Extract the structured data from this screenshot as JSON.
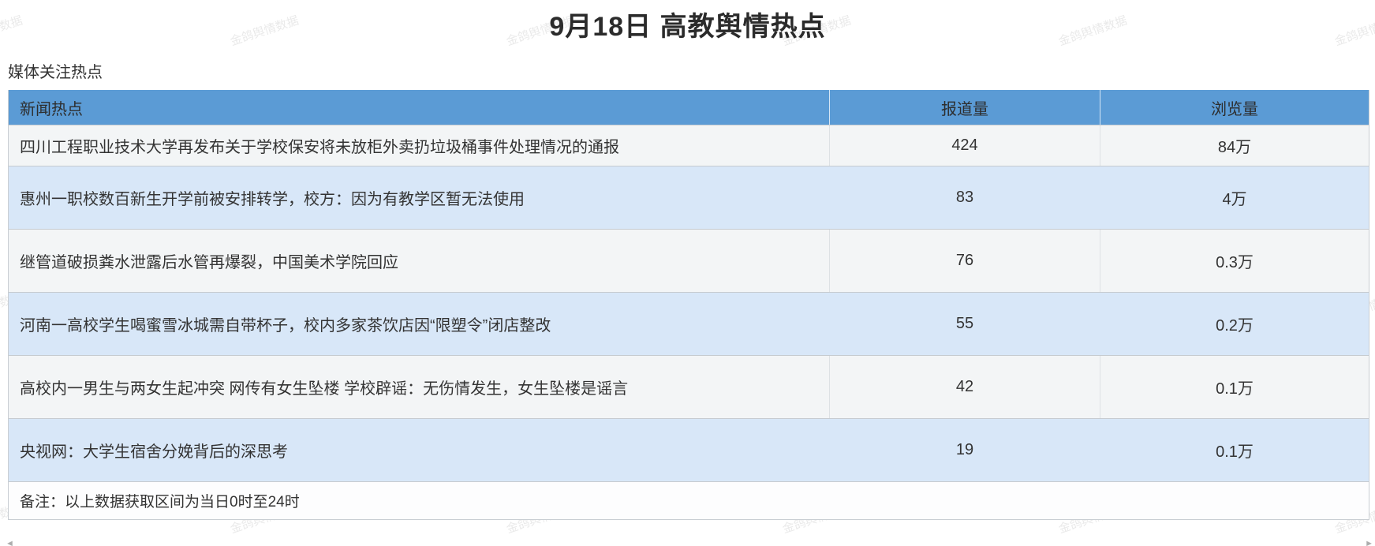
{
  "page": {
    "title": "9月18日 高教舆情热点",
    "section_label": "媒体关注热点",
    "watermark": "金鸽舆情数据"
  },
  "table": {
    "columns": {
      "news": "新闻热点",
      "reports": "报道量",
      "views": "浏览量"
    },
    "rows": [
      {
        "title": "四川工程职业技术大学再发布关于学校保安将未放柜外卖扔垃圾桶事件处理情况的通报",
        "reports": "424",
        "views": "84万"
      },
      {
        "title": "惠州一职校数百新生开学前被安排转学，校方：因为有教学区暂无法使用",
        "reports": "83",
        "views": "4万"
      },
      {
        "title": "继管道破损粪水泄露后水管再爆裂，中国美术学院回应",
        "reports": "76",
        "views": "0.3万"
      },
      {
        "title": "河南一高校学生喝蜜雪冰城需自带杯子，校内多家茶饮店因“限塑令”闭店整改",
        "reports": "55",
        "views": "0.2万"
      },
      {
        "title": "高校内一男生与两女生起冲突 网传有女生坠楼 学校辟谣：无伤情发生，女生坠楼是谣言",
        "reports": "42",
        "views": "0.1万"
      },
      {
        "title": "央视网：大学生宿舍分娩背后的深思考",
        "reports": "19",
        "views": "0.1万"
      }
    ],
    "footnote": "备注：以上数据获取区间为当日0时至24时"
  },
  "icons": {
    "scroll_left_arrow": "◄",
    "scroll_right_arrow": "►"
  },
  "colors": {
    "header_blue": "#5b9bd5",
    "row_blue": "#d8e7f8",
    "row_light": "#f3f5f6",
    "text": "#333333"
  }
}
